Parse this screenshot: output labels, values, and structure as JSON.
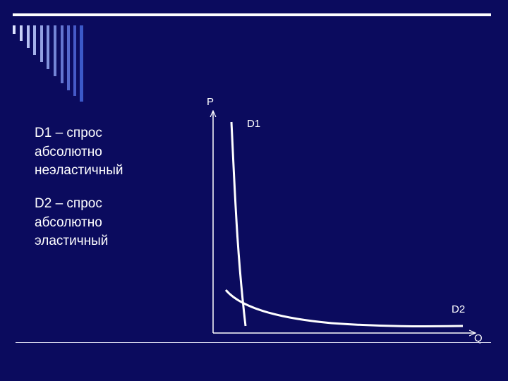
{
  "slide": {
    "text_d1": "D1 – спрос\nабсолютно\nнеэластичный",
    "text_d2": "D2 – спрос\nабсолютно\nэластичный"
  },
  "diagram": {
    "p_axis_label": "P",
    "q_axis_label": "Q",
    "curve_d1_label": "D1",
    "curve_d2_label": "D2"
  },
  "colors": {
    "background": "#0b0b5e",
    "foreground": "#ffffff",
    "accent_stripe_light": "#7f8fd6",
    "accent_stripe_mid": "#3b59c9"
  }
}
